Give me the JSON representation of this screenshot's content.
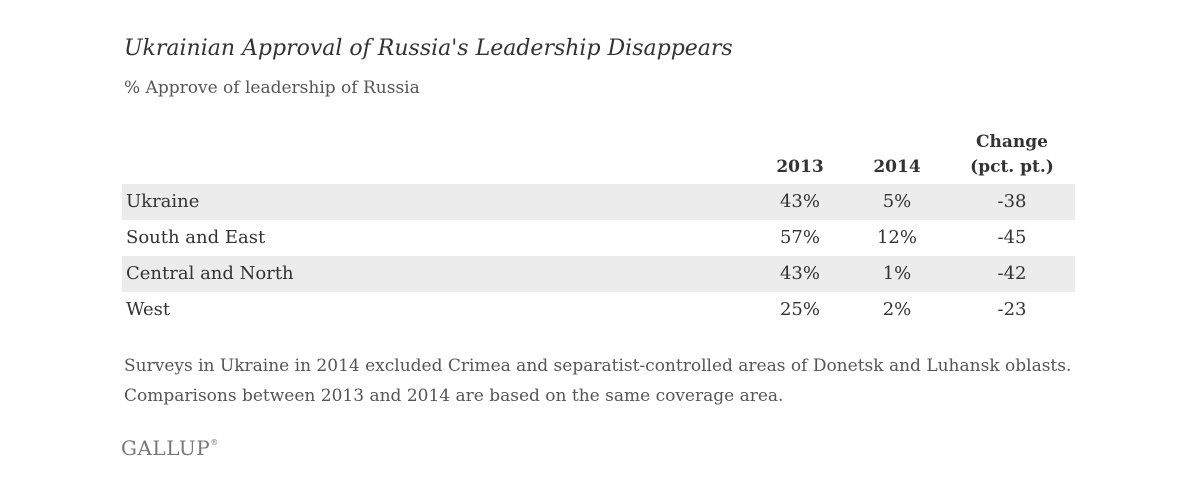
{
  "title": "Ukrainian Approval of Russia's Leadership Disappears",
  "subtitle": "% Approve of leadership of Russia",
  "columns": {
    "year1": "2013",
    "year2": "2014",
    "change_line1": "Change",
    "change_line2": "(pct. pt.)"
  },
  "rows": [
    {
      "label": "Ukraine",
      "v2013": "43%",
      "v2014": "5%",
      "change": "-38"
    },
    {
      "label": "South and East",
      "v2013": "57%",
      "v2014": "12%",
      "change": "-45"
    },
    {
      "label": "Central and North",
      "v2013": "43%",
      "v2014": "1%",
      "change": "-42"
    },
    {
      "label": "West",
      "v2013": "25%",
      "v2014": "2%",
      "change": "-23"
    }
  ],
  "note": "Surveys in Ukraine in 2014 excluded Crimea and separatist-controlled areas of Donetsk and Luhansk oblasts. Comparisons between 2013 and 2014 are based on the same coverage area.",
  "logo": "GALLUP",
  "logo_mark": "®",
  "colors": {
    "row_shade": "#ececec",
    "text": "#333333"
  },
  "chart_data": {
    "type": "table",
    "title": "Ukrainian Approval of Russia's Leadership Disappears",
    "subtitle": "% Approve of leadership of Russia",
    "columns": [
      "2013",
      "2014",
      "Change (pct. pt.)"
    ],
    "categories": [
      "Ukraine",
      "South and East",
      "Central and North",
      "West"
    ],
    "series": [
      {
        "name": "2013",
        "values": [
          43,
          57,
          43,
          25
        ]
      },
      {
        "name": "2014",
        "values": [
          5,
          12,
          1,
          2
        ]
      },
      {
        "name": "Change (pct. pt.)",
        "values": [
          -38,
          -45,
          -42,
          -23
        ]
      }
    ]
  }
}
